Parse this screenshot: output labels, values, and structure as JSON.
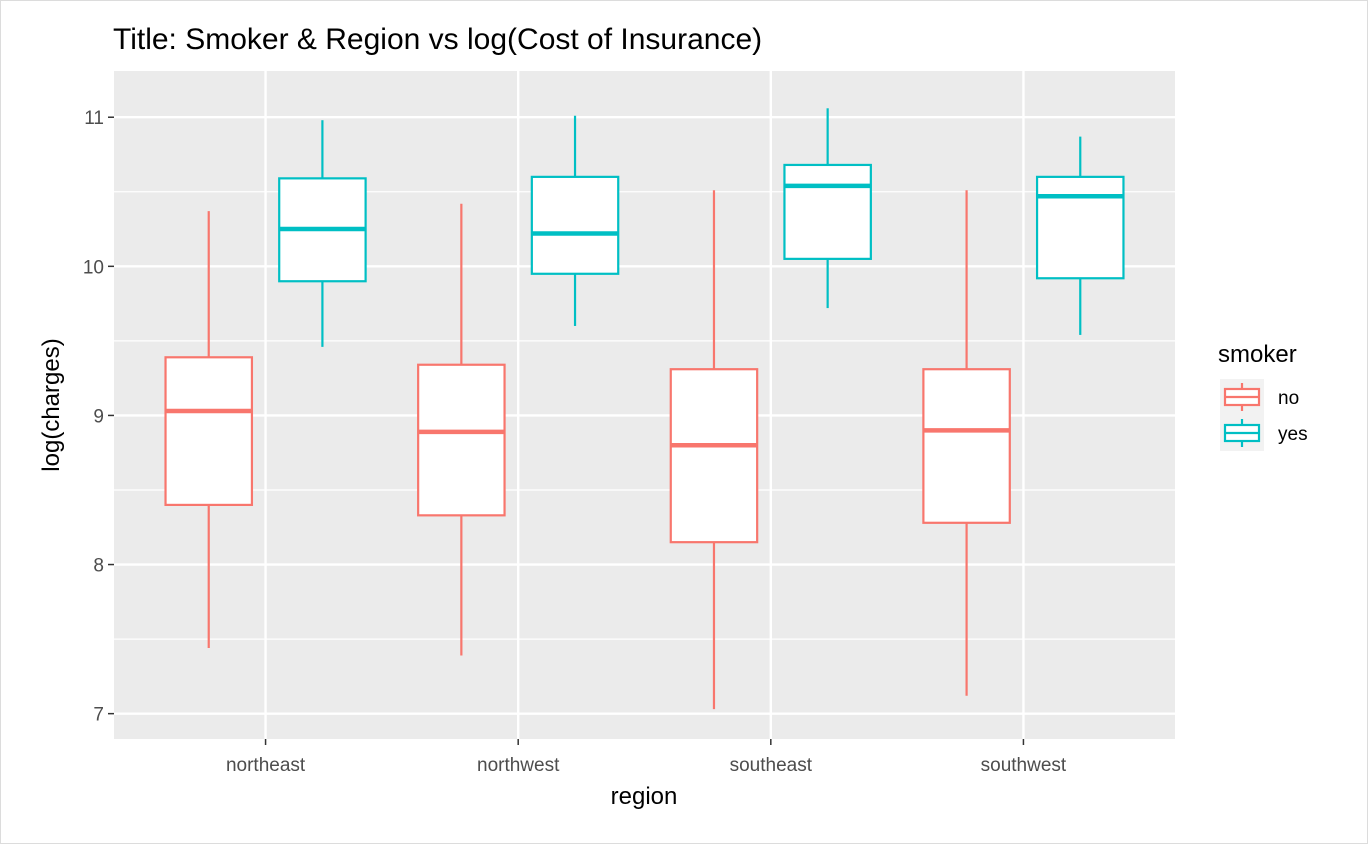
{
  "chart_data": {
    "type": "box",
    "title": "Title: Smoker & Region vs log(Cost of Insurance)",
    "xlabel": "region",
    "ylabel": "log(charges)",
    "categories": [
      "northeast",
      "northwest",
      "southeast",
      "southwest"
    ],
    "ylim": [
      6.83,
      11.31
    ],
    "yticks": [
      7,
      8,
      9,
      10,
      11
    ],
    "grid": true,
    "legend": {
      "title": "smoker",
      "placement": "right",
      "entries": [
        "no",
        "yes"
      ]
    },
    "series": [
      {
        "name": "no",
        "color": "#F8766D",
        "boxes": [
          {
            "category": "northeast",
            "min": 7.44,
            "q1": 8.4,
            "median": 9.03,
            "q3": 9.39,
            "max": 10.37
          },
          {
            "category": "northwest",
            "min": 7.39,
            "q1": 8.33,
            "median": 8.89,
            "q3": 9.34,
            "max": 10.42
          },
          {
            "category": "southeast",
            "min": 7.03,
            "q1": 8.15,
            "median": 8.8,
            "q3": 9.31,
            "max": 10.51
          },
          {
            "category": "southwest",
            "min": 7.12,
            "q1": 8.28,
            "median": 8.9,
            "q3": 9.31,
            "max": 10.51
          }
        ]
      },
      {
        "name": "yes",
        "color": "#00BFC4",
        "boxes": [
          {
            "category": "northeast",
            "min": 9.46,
            "q1": 9.9,
            "median": 10.25,
            "q3": 10.59,
            "max": 10.98
          },
          {
            "category": "northwest",
            "min": 9.6,
            "q1": 9.95,
            "median": 10.22,
            "q3": 10.6,
            "max": 11.01
          },
          {
            "category": "southeast",
            "min": 9.72,
            "q1": 10.05,
            "median": 10.54,
            "q3": 10.68,
            "max": 11.06
          },
          {
            "category": "southwest",
            "min": 9.54,
            "q1": 9.92,
            "median": 10.47,
            "q3": 10.6,
            "max": 10.87
          }
        ]
      }
    ]
  }
}
